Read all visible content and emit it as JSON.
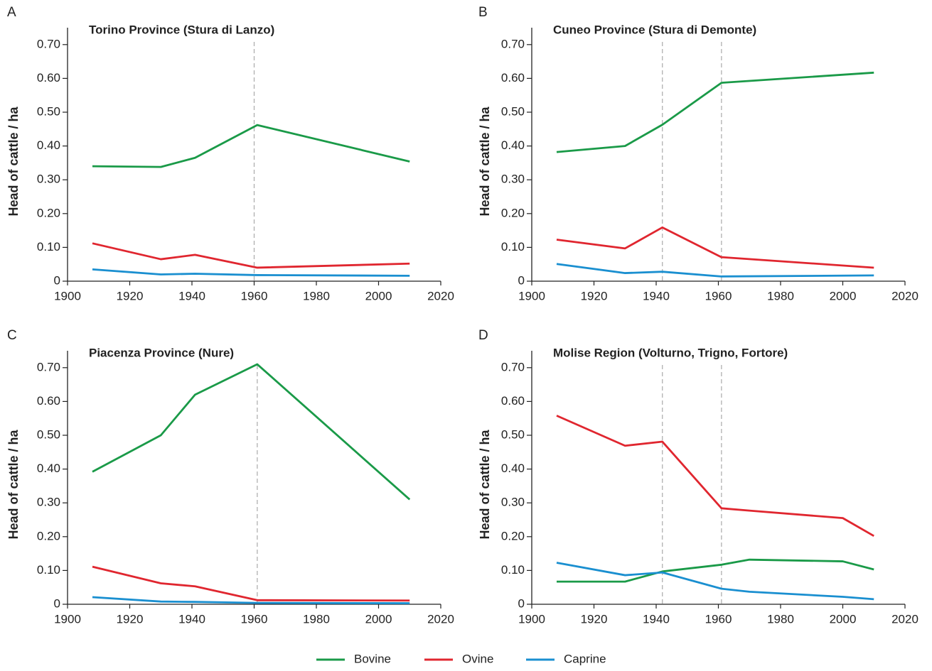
{
  "chart_data": [
    {
      "type": "line",
      "label": "A",
      "title": "Torino Province (Stura di Lanzo)",
      "ylabel": "Head of cattle / ha",
      "x": [
        1908,
        1930,
        1941,
        1961,
        2010
      ],
      "series": [
        {
          "values": [
            0.34,
            0.338,
            0.365,
            0.462,
            0.354
          ]
        },
        {
          "values": [
            0.112,
            0.065,
            0.078,
            0.04,
            0.052
          ]
        },
        {
          "values": [
            0.035,
            0.02,
            0.022,
            0.018,
            0.016
          ]
        }
      ],
      "vlines": [
        1960
      ],
      "xlim": [
        1900,
        2020
      ],
      "xticks": [
        1900,
        1920,
        1940,
        1960,
        1980,
        2000,
        2020
      ],
      "ylim": [
        0,
        0.75
      ],
      "yticks": [
        0,
        {
          "value": 0.1,
          "label": "0.10"
        },
        {
          "value": 0.2,
          "label": "0.20"
        },
        {
          "value": 0.3,
          "label": "0.30"
        },
        {
          "value": 0.4,
          "label": "0.40"
        },
        {
          "value": 0.5,
          "label": "0.50"
        },
        {
          "value": 0.6,
          "label": "0.60"
        },
        {
          "value": 0.7,
          "label": "0.70"
        }
      ]
    },
    {
      "type": "line",
      "label": "B",
      "title": "Cuneo Province (Stura di Demonte)",
      "ylabel": "Head of cattle / ha",
      "x": [
        1908,
        1930,
        1942,
        1961,
        2010
      ],
      "series": [
        {
          "values": [
            0.382,
            0.4,
            0.463,
            0.587,
            0.617
          ]
        },
        {
          "values": [
            0.123,
            0.097,
            0.159,
            0.071,
            0.04
          ]
        },
        {
          "values": [
            0.051,
            0.024,
            0.028,
            0.014,
            0.017
          ]
        }
      ],
      "vlines": [
        1942,
        1961
      ],
      "xlim": [
        1900,
        2020
      ],
      "xticks": [
        1900,
        1920,
        1940,
        1960,
        1980,
        2000,
        2020
      ],
      "ylim": [
        0,
        0.75
      ],
      "yticks": [
        0,
        {
          "value": 0.1,
          "label": "0.10"
        },
        {
          "value": 0.2,
          "label": "0.20"
        },
        {
          "value": 0.3,
          "label": "0.30"
        },
        {
          "value": 0.4,
          "label": "0.40"
        },
        {
          "value": 0.5,
          "label": "0.50"
        },
        {
          "value": 0.6,
          "label": "0.60"
        },
        {
          "value": 0.7,
          "label": "0.70"
        }
      ]
    },
    {
      "type": "line",
      "label": "C",
      "title": "Piacenza Province (Nure)",
      "ylabel": "Head of cattle / ha",
      "x": [
        1908,
        1930,
        1941,
        1961,
        2010
      ],
      "series": [
        {
          "values": [
            0.392,
            0.5,
            0.62,
            0.71,
            0.31
          ]
        },
        {
          "values": [
            0.111,
            0.062,
            0.053,
            0.012,
            0.011
          ]
        },
        {
          "values": [
            0.021,
            0.008,
            0.007,
            0.004,
            0.003
          ]
        }
      ],
      "vlines": [
        1961
      ],
      "xlim": [
        1900,
        2020
      ],
      "xticks": [
        1900,
        1920,
        1940,
        1960,
        1980,
        2000,
        2020
      ],
      "ylim": [
        0,
        0.75
      ],
      "yticks": [
        0,
        {
          "value": 0.1,
          "label": "0.10"
        },
        {
          "value": 0.2,
          "label": "0.20"
        },
        {
          "value": 0.3,
          "label": "0.30"
        },
        {
          "value": 0.4,
          "label": "0.40"
        },
        {
          "value": 0.5,
          "label": "0.50"
        },
        {
          "value": 0.6,
          "label": "0.60"
        },
        {
          "value": 0.7,
          "label": "0.70"
        }
      ]
    },
    {
      "type": "line",
      "label": "D",
      "title": "Molise Region (Volturno, Trigno, Fortore)",
      "ylabel": "Head of cattle / ha",
      "x": [
        1908,
        1930,
        1942,
        1961,
        1970,
        2000,
        2010
      ],
      "series": [
        {
          "values": [
            0.067,
            0.067,
            0.097,
            0.117,
            0.132,
            0.127,
            0.103
          ]
        },
        {
          "values": [
            0.558,
            0.469,
            0.481,
            0.284,
            0.277,
            0.255,
            0.202
          ]
        },
        {
          "values": [
            0.123,
            0.086,
            0.094,
            0.046,
            0.037,
            0.022,
            0.015
          ]
        }
      ],
      "vlines": [
        1942,
        1961
      ],
      "xlim": [
        1900,
        2020
      ],
      "xticks": [
        1900,
        1920,
        1940,
        1960,
        1980,
        2000,
        2020
      ],
      "ylim": [
        0,
        0.75
      ],
      "yticks": [
        0,
        {
          "value": 0.1,
          "label": "0.10"
        },
        {
          "value": 0.2,
          "label": "0.20"
        },
        {
          "value": 0.3,
          "label": "0.30"
        },
        {
          "value": 0.4,
          "label": "0.40"
        },
        {
          "value": 0.5,
          "label": "0.50"
        },
        {
          "value": 0.6,
          "label": "0.60"
        },
        {
          "value": 0.7,
          "label": "0.70"
        }
      ]
    }
  ],
  "legend": [
    {
      "name": "Bovine",
      "color": "#1a9a48"
    },
    {
      "name": "Ovine",
      "color": "#e0262f"
    },
    {
      "name": "Caprine",
      "color": "#1a8fd0"
    }
  ]
}
